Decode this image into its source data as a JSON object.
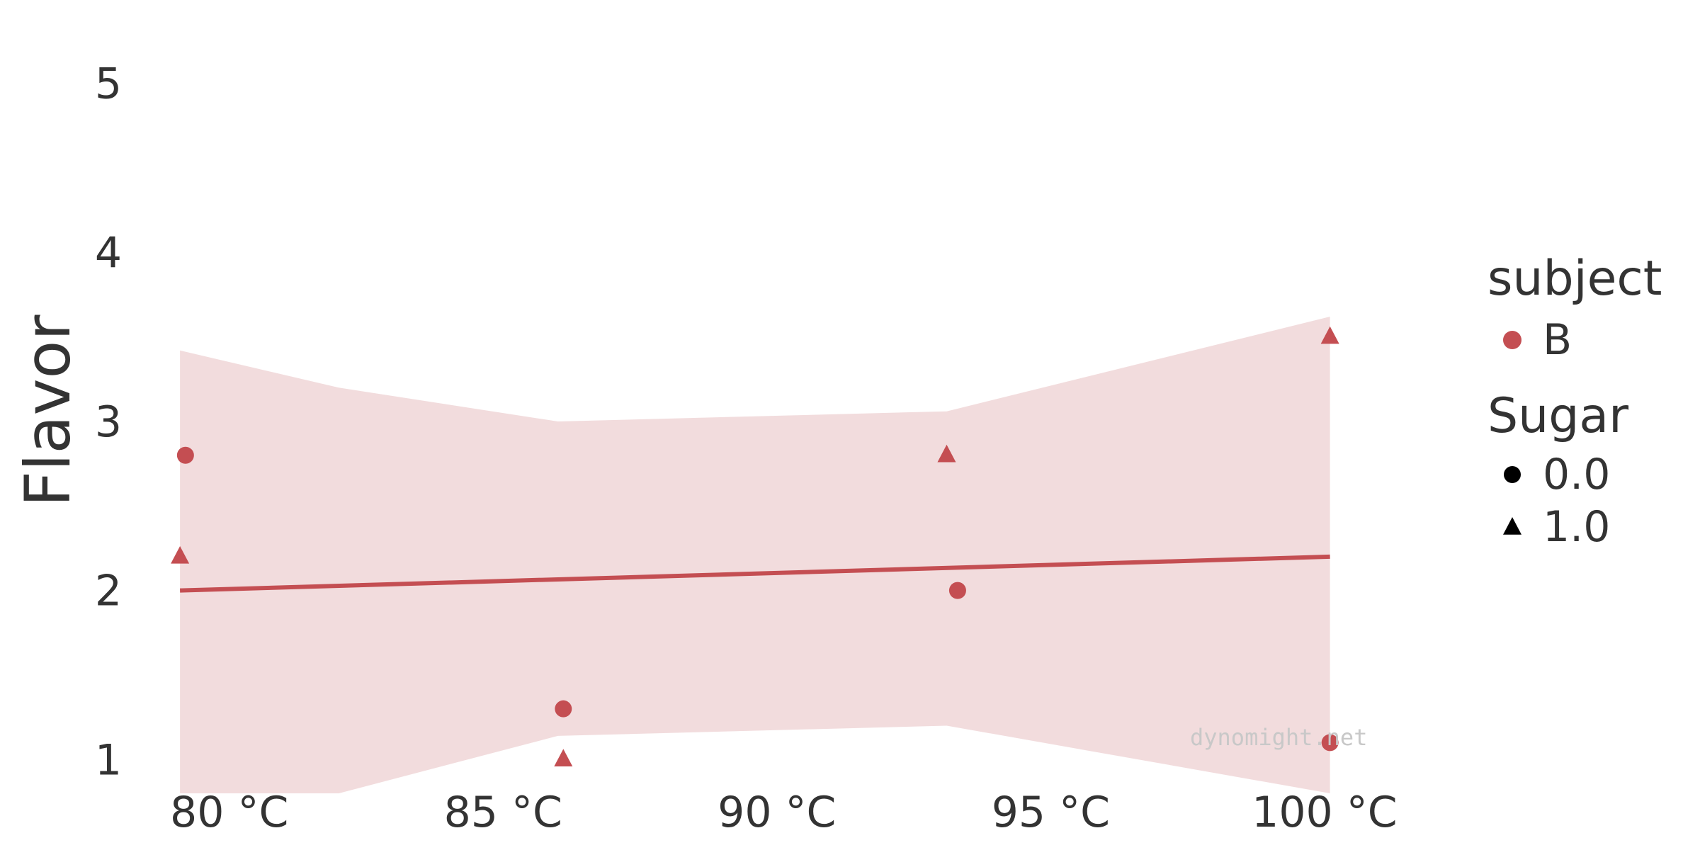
{
  "chart_data": {
    "type": "scatter",
    "title": "",
    "xlabel": "",
    "ylabel": "Flavor",
    "x_tick_labels": [
      "80 °C",
      "85 °C",
      "90 °C",
      "95 °C",
      "100 °C"
    ],
    "x_ticks": [
      80,
      85,
      90,
      95,
      100
    ],
    "y_tick_labels": [
      "1",
      "2",
      "3",
      "4",
      "5"
    ],
    "y_ticks": [
      1,
      2,
      3,
      4,
      5
    ],
    "xlim": [
      78.4,
      102.2
    ],
    "ylim": [
      0.8,
      5.2
    ],
    "grid": false,
    "legend_placement": "right",
    "points": [
      {
        "x": 79.2,
        "y": 2.8,
        "subject": "B",
        "sugar": "0.0"
      },
      {
        "x": 79.1,
        "y": 2.2,
        "subject": "B",
        "sugar": "1.0"
      },
      {
        "x": 86.1,
        "y": 1.3,
        "subject": "B",
        "sugar": "0.0"
      },
      {
        "x": 86.1,
        "y": 1.0,
        "subject": "B",
        "sugar": "1.0"
      },
      {
        "x": 93.1,
        "y": 2.8,
        "subject": "B",
        "sugar": "1.0"
      },
      {
        "x": 93.3,
        "y": 2.0,
        "subject": "B",
        "sugar": "0.0"
      },
      {
        "x": 100.1,
        "y": 3.5,
        "subject": "B",
        "sugar": "1.0"
      },
      {
        "x": 100.1,
        "y": 1.1,
        "subject": "B",
        "sugar": "0.0"
      }
    ],
    "fit_line": {
      "x": [
        79.1,
        100.1
      ],
      "y": [
        2.0,
        2.2
      ]
    },
    "confidence_band": {
      "x": [
        79.1,
        82.0,
        86.0,
        93.1,
        100.1
      ],
      "upper": [
        3.42,
        3.2,
        3.0,
        3.06,
        3.62
      ],
      "lower": [
        0.8,
        0.8,
        1.14,
        1.2,
        0.8
      ]
    },
    "legend": {
      "subject": {
        "title": "subject",
        "entries": [
          {
            "label": "B",
            "marker": "circle",
            "color": "#c44e52"
          }
        ]
      },
      "sugar": {
        "title": "Sugar",
        "entries": [
          {
            "label": "0.0",
            "marker": "circle",
            "color": "#000000"
          },
          {
            "label": "1.0",
            "marker": "triangle",
            "color": "#000000"
          }
        ]
      }
    },
    "watermark": "dynomight.net",
    "colors": {
      "series": "#c44e52",
      "band": "#f2dcdd",
      "text": "#333333"
    }
  }
}
